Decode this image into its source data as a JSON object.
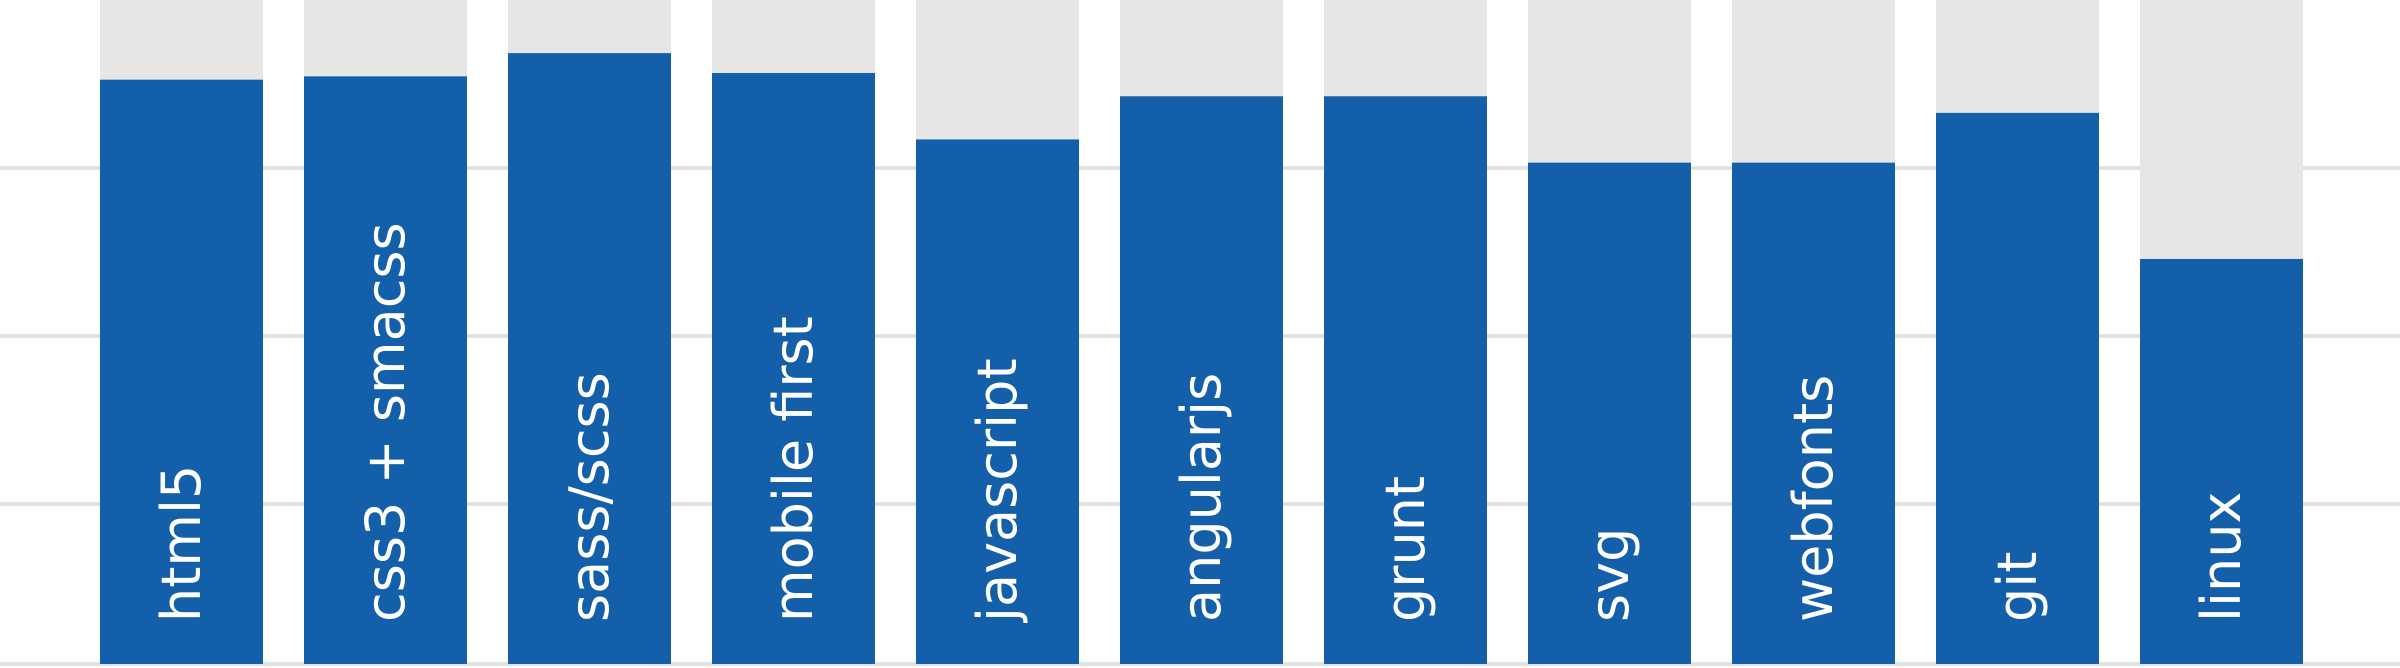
{
  "chart_data": {
    "type": "bar",
    "title": "",
    "xlabel": "",
    "ylabel": "",
    "ylim": [
      0,
      100
    ],
    "grid": true,
    "colors": {
      "bar": "#135fa9",
      "track": "#e6e6e6",
      "grid": "#e2e2e2"
    },
    "categories": [
      "html5",
      "css3 + smacss",
      "sass/scss",
      "mobile first",
      "javascript",
      "angularjs",
      "grunt",
      "svg",
      "webfonts",
      "git",
      "linux"
    ],
    "values": [
      88,
      88.5,
      92,
      89,
      79,
      85.5,
      85.5,
      75.5,
      75.5,
      83,
      61
    ]
  }
}
